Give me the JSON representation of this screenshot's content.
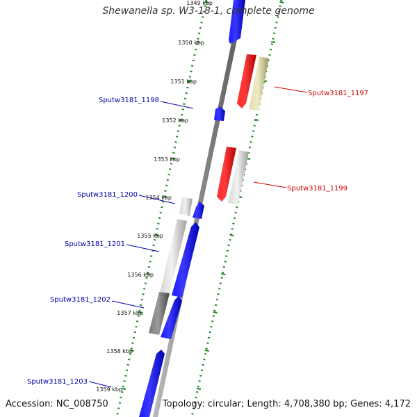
{
  "title": "Shewanella sp. W3-18-1, complete genome",
  "accession": "Accession: NC_008750",
  "summary": "Topology: circular; Length: 4,708,380 bp; Genes: 4,172",
  "colors": {
    "forward_cds": "#0000ee",
    "reverse_cds": "#ee0000",
    "gray_feature": "#c8c8c8",
    "dark_gray_feature": "#6a6a6a",
    "olive_feature": "#c8c28a",
    "backbone": "#888888",
    "forward_label": "#0000aa",
    "reverse_label": "#cc0000",
    "tick_marks": "#1f8a1f"
  },
  "ticks": [
    "1349 kbp",
    "1350 kbp",
    "1351 kbp",
    "1352 kbp",
    "1353 kbp",
    "1354 kbp",
    "1355 kbp",
    "1356 kbp",
    "1357 kbp",
    "1358 kbp",
    "1359 kbp"
  ],
  "genes": [
    {
      "label": "Sputw3181_1197",
      "strand": "reverse"
    },
    {
      "label": "Sputw3181_1198",
      "strand": "forward"
    },
    {
      "label": "Sputw3181_1199",
      "strand": "reverse"
    },
    {
      "label": "Sputw3181_1200",
      "strand": "forward"
    },
    {
      "label": "Sputw3181_1201",
      "strand": "forward"
    },
    {
      "label": "Sputw3181_1202",
      "strand": "forward"
    },
    {
      "label": "Sputw3181_1203",
      "strand": "forward"
    }
  ]
}
